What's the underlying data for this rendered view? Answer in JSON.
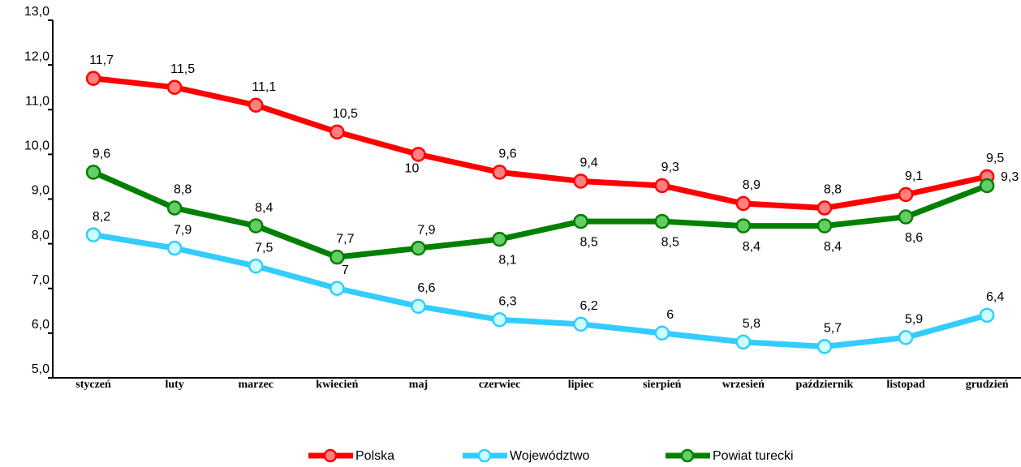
{
  "chart_data": {
    "type": "line",
    "categories": [
      "styczeń",
      "luty",
      "marzec",
      "kwiecień",
      "maj",
      "czerwiec",
      "lipiec",
      "sierpień",
      "wrzesień",
      "październik",
      "listopad",
      "grudzień"
    ],
    "series": [
      {
        "name": "Polska",
        "color": "#ff0000",
        "marker_color": "#ff8080",
        "values": [
          11.7,
          11.5,
          11.1,
          10.5,
          10,
          9.6,
          9.4,
          9.3,
          8.9,
          8.8,
          9.1,
          9.5
        ],
        "value_labels": [
          "11,7",
          "11,5",
          "11,1",
          "10,5",
          "10",
          "9,6",
          "9,4",
          "9,3",
          "8,9",
          "8,8",
          "9,1",
          "9,5"
        ]
      },
      {
        "name": "Województwo",
        "color": "#33ccff",
        "marker_color": "#ccffff",
        "values": [
          8.2,
          7.9,
          7.5,
          7,
          6.6,
          6.3,
          6.2,
          6,
          5.8,
          5.7,
          5.9,
          6.4
        ],
        "value_labels": [
          "8,2",
          "7,9",
          "7,5",
          "7",
          "6,6",
          "6,3",
          "6,2",
          "6",
          "5,8",
          "5,7",
          "5,9",
          "6,4"
        ]
      },
      {
        "name": "Powiat turecki",
        "color": "#008000",
        "marker_color": "#66cc66",
        "values": [
          9.6,
          8.8,
          8.4,
          7.7,
          7.9,
          8.1,
          8.5,
          8.5,
          8.4,
          8.4,
          8.6,
          9.3
        ],
        "value_labels": [
          "9,6",
          "8,8",
          "8,4",
          "7,7",
          "7,9",
          "8,1",
          "8,5",
          "8,5",
          "8,4",
          "8,4",
          "8,6",
          "9,3"
        ]
      }
    ],
    "ylim": [
      5,
      13
    ],
    "yticks": [
      {
        "value": 5,
        "label": "5,0"
      },
      {
        "value": 6,
        "label": "6,0"
      },
      {
        "value": 7,
        "label": "7,0"
      },
      {
        "value": 8,
        "label": "8,0"
      },
      {
        "value": 9,
        "label": "9,0"
      },
      {
        "value": 10,
        "label": "10,0"
      },
      {
        "value": 11,
        "label": "11,0"
      },
      {
        "value": 12,
        "label": "12,0"
      },
      {
        "value": 13,
        "label": "13,0"
      }
    ],
    "legend": "bottom"
  }
}
